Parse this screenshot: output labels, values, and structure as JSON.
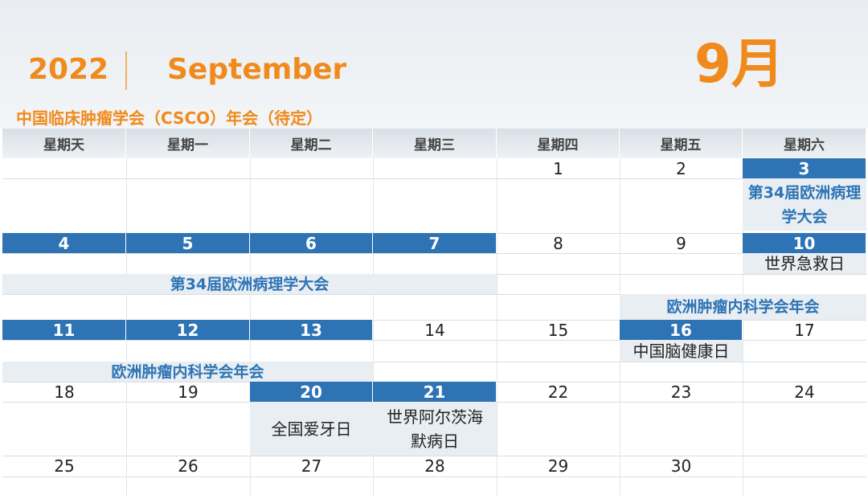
{
  "header": {
    "year": "2022",
    "month_en": "September",
    "month_cn": "9月",
    "event_banner": "中国临床肿瘤学会（CSCO）年会（待定）"
  },
  "colors": {
    "accent": "#f08a1c",
    "highlight": "#2e74b5",
    "event_bg": "#e9eef2"
  },
  "weekdays": [
    "星期天",
    "星期一",
    "星期二",
    "星期三",
    "星期四",
    "星期五",
    "星期六"
  ],
  "days": {
    "d1": "1",
    "d2": "2",
    "d3": "3",
    "d4": "4",
    "d5": "5",
    "d6": "6",
    "d7": "7",
    "d8": "8",
    "d9": "9",
    "d10": "10",
    "d11": "11",
    "d12": "12",
    "d13": "13",
    "d14": "14",
    "d15": "15",
    "d16": "16",
    "d17": "17",
    "d18": "18",
    "d19": "19",
    "d20": "20",
    "d21": "21",
    "d22": "22",
    "d23": "23",
    "d24": "24",
    "d25": "25",
    "d26": "26",
    "d27": "27",
    "d28": "28",
    "d29": "29",
    "d30": "30"
  },
  "events": {
    "ecp_sat": "第34届欧洲病理学大会",
    "ecp_span": "第34届欧洲病理学大会",
    "first_aid": "世界急救日",
    "esmo_1": "欧洲肿瘤内科学会年会",
    "brain": "中国脑健康日",
    "esmo_2": "欧洲肿瘤内科学会年会",
    "teeth": "全国爱牙日",
    "alz": "世界阿尔茨海默病日"
  }
}
